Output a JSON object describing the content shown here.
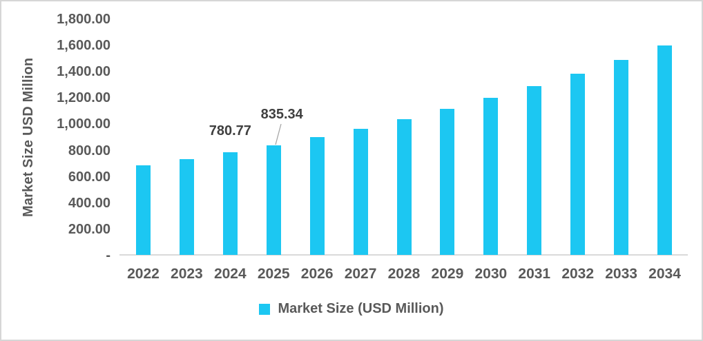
{
  "chart": {
    "y_axis_title": "Market Size USD Million",
    "legend_label": "Market Size (USD Million)"
  },
  "chart_data": {
    "type": "bar",
    "title": "",
    "xlabel": "",
    "ylabel": "Market Size USD Million",
    "categories": [
      "2022",
      "2023",
      "2024",
      "2025",
      "2026",
      "2027",
      "2028",
      "2029",
      "2030",
      "2031",
      "2032",
      "2033",
      "2034"
    ],
    "series": [
      {
        "name": "Market Size (USD Million)",
        "values": [
          683,
          731,
          780.77,
          835.34,
          897,
          963,
          1036,
          1113,
          1196,
          1286,
          1382,
          1485,
          1596
        ]
      }
    ],
    "ylim": [
      0,
      1800
    ],
    "ytick_step": 200,
    "ytick_labels": [
      "1,800.00",
      "1,600.00",
      "1,400.00",
      "1,200.00",
      "1,000.00",
      "800.00",
      "600.00",
      "400.00",
      "200.00",
      "-"
    ],
    "grid": false,
    "legend_position": "bottom",
    "annotations": [
      {
        "category": "2024",
        "text": "780.77",
        "leader_line": false
      },
      {
        "category": "2025",
        "text": "835.34",
        "leader_line": true
      }
    ],
    "colors": {
      "bar": "#1cc7f2",
      "axis_text": "#595959",
      "data_label": "#3f3f3f",
      "axis_line": "#d9d9d9",
      "leader_line": "#a6a6a6"
    }
  }
}
